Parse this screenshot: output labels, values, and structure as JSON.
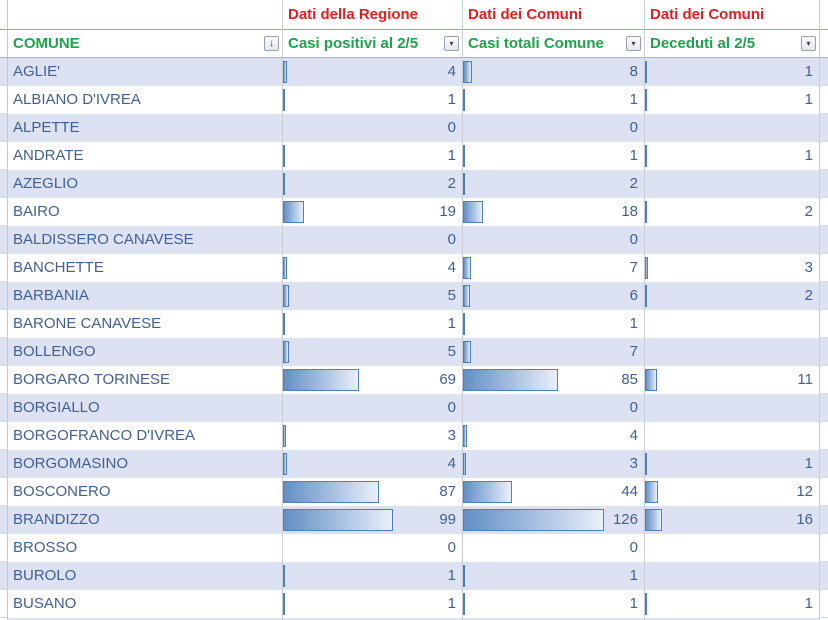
{
  "header_groups": {
    "casi_positivi": "Dati della Regione",
    "casi_totali": "Dati dei Comuni",
    "deceduti": "Dati dei Comuni"
  },
  "columns": {
    "comune": "COMUNE",
    "casi_positivi": "Casi positivi al 2/5",
    "casi_totali": "Casi totali Comune",
    "deceduti": "Deceduti al 2/5"
  },
  "filter": {
    "sort_icon": "↓",
    "dropdown_icon": "▾"
  },
  "bar_scale_max": 126,
  "bar_max_pct": 78,
  "colors": {
    "group_header_red": "#e02020",
    "column_header_green": "#1fa24b",
    "cell_text_blue": "#41608e",
    "row_alt_fill": "#dce2f1",
    "bar_border": "#4e7fbc",
    "bar_fill_start": "#6390c5",
    "bar_fill_end": "#e9f0fa"
  },
  "rows": [
    {
      "comune": "AGLIE'",
      "casi_positivi": 4,
      "casi_totali": 8,
      "deceduti": 1
    },
    {
      "comune": "ALBIANO D'IVREA",
      "casi_positivi": 1,
      "casi_totali": 1,
      "deceduti": 1
    },
    {
      "comune": "ALPETTE",
      "casi_positivi": 0,
      "casi_totali": 0,
      "deceduti": null
    },
    {
      "comune": "ANDRATE",
      "casi_positivi": 1,
      "casi_totali": 1,
      "deceduti": 1
    },
    {
      "comune": "AZEGLIO",
      "casi_positivi": 2,
      "casi_totali": 2,
      "deceduti": null
    },
    {
      "comune": "BAIRO",
      "casi_positivi": 19,
      "casi_totali": 18,
      "deceduti": 2
    },
    {
      "comune": "BALDISSERO CANAVESE",
      "casi_positivi": 0,
      "casi_totali": 0,
      "deceduti": null
    },
    {
      "comune": "BANCHETTE",
      "casi_positivi": 4,
      "casi_totali": 7,
      "deceduti": 3
    },
    {
      "comune": "BARBANIA",
      "casi_positivi": 5,
      "casi_totali": 6,
      "deceduti": 2
    },
    {
      "comune": "BARONE CANAVESE",
      "casi_positivi": 1,
      "casi_totali": 1,
      "deceduti": null
    },
    {
      "comune": "BOLLENGO",
      "casi_positivi": 5,
      "casi_totali": 7,
      "deceduti": null
    },
    {
      "comune": "BORGARO TORINESE",
      "casi_positivi": 69,
      "casi_totali": 85,
      "deceduti": 11
    },
    {
      "comune": "BORGIALLO",
      "casi_positivi": 0,
      "casi_totali": 0,
      "deceduti": null
    },
    {
      "comune": "BORGOFRANCO D'IVREA",
      "casi_positivi": 3,
      "casi_totali": 4,
      "deceduti": null
    },
    {
      "comune": "BORGOMASINO",
      "casi_positivi": 4,
      "casi_totali": 3,
      "deceduti": 1
    },
    {
      "comune": "BOSCONERO",
      "casi_positivi": 87,
      "casi_totali": 44,
      "deceduti": 12
    },
    {
      "comune": "BRANDIZZO",
      "casi_positivi": 99,
      "casi_totali": 126,
      "deceduti": 16
    },
    {
      "comune": "BROSSO",
      "casi_positivi": 0,
      "casi_totali": 0,
      "deceduti": null
    },
    {
      "comune": "BUROLO",
      "casi_positivi": 1,
      "casi_totali": 1,
      "deceduti": null
    },
    {
      "comune": "BUSANO",
      "casi_positivi": 1,
      "casi_totali": 1,
      "deceduti": 1
    }
  ]
}
